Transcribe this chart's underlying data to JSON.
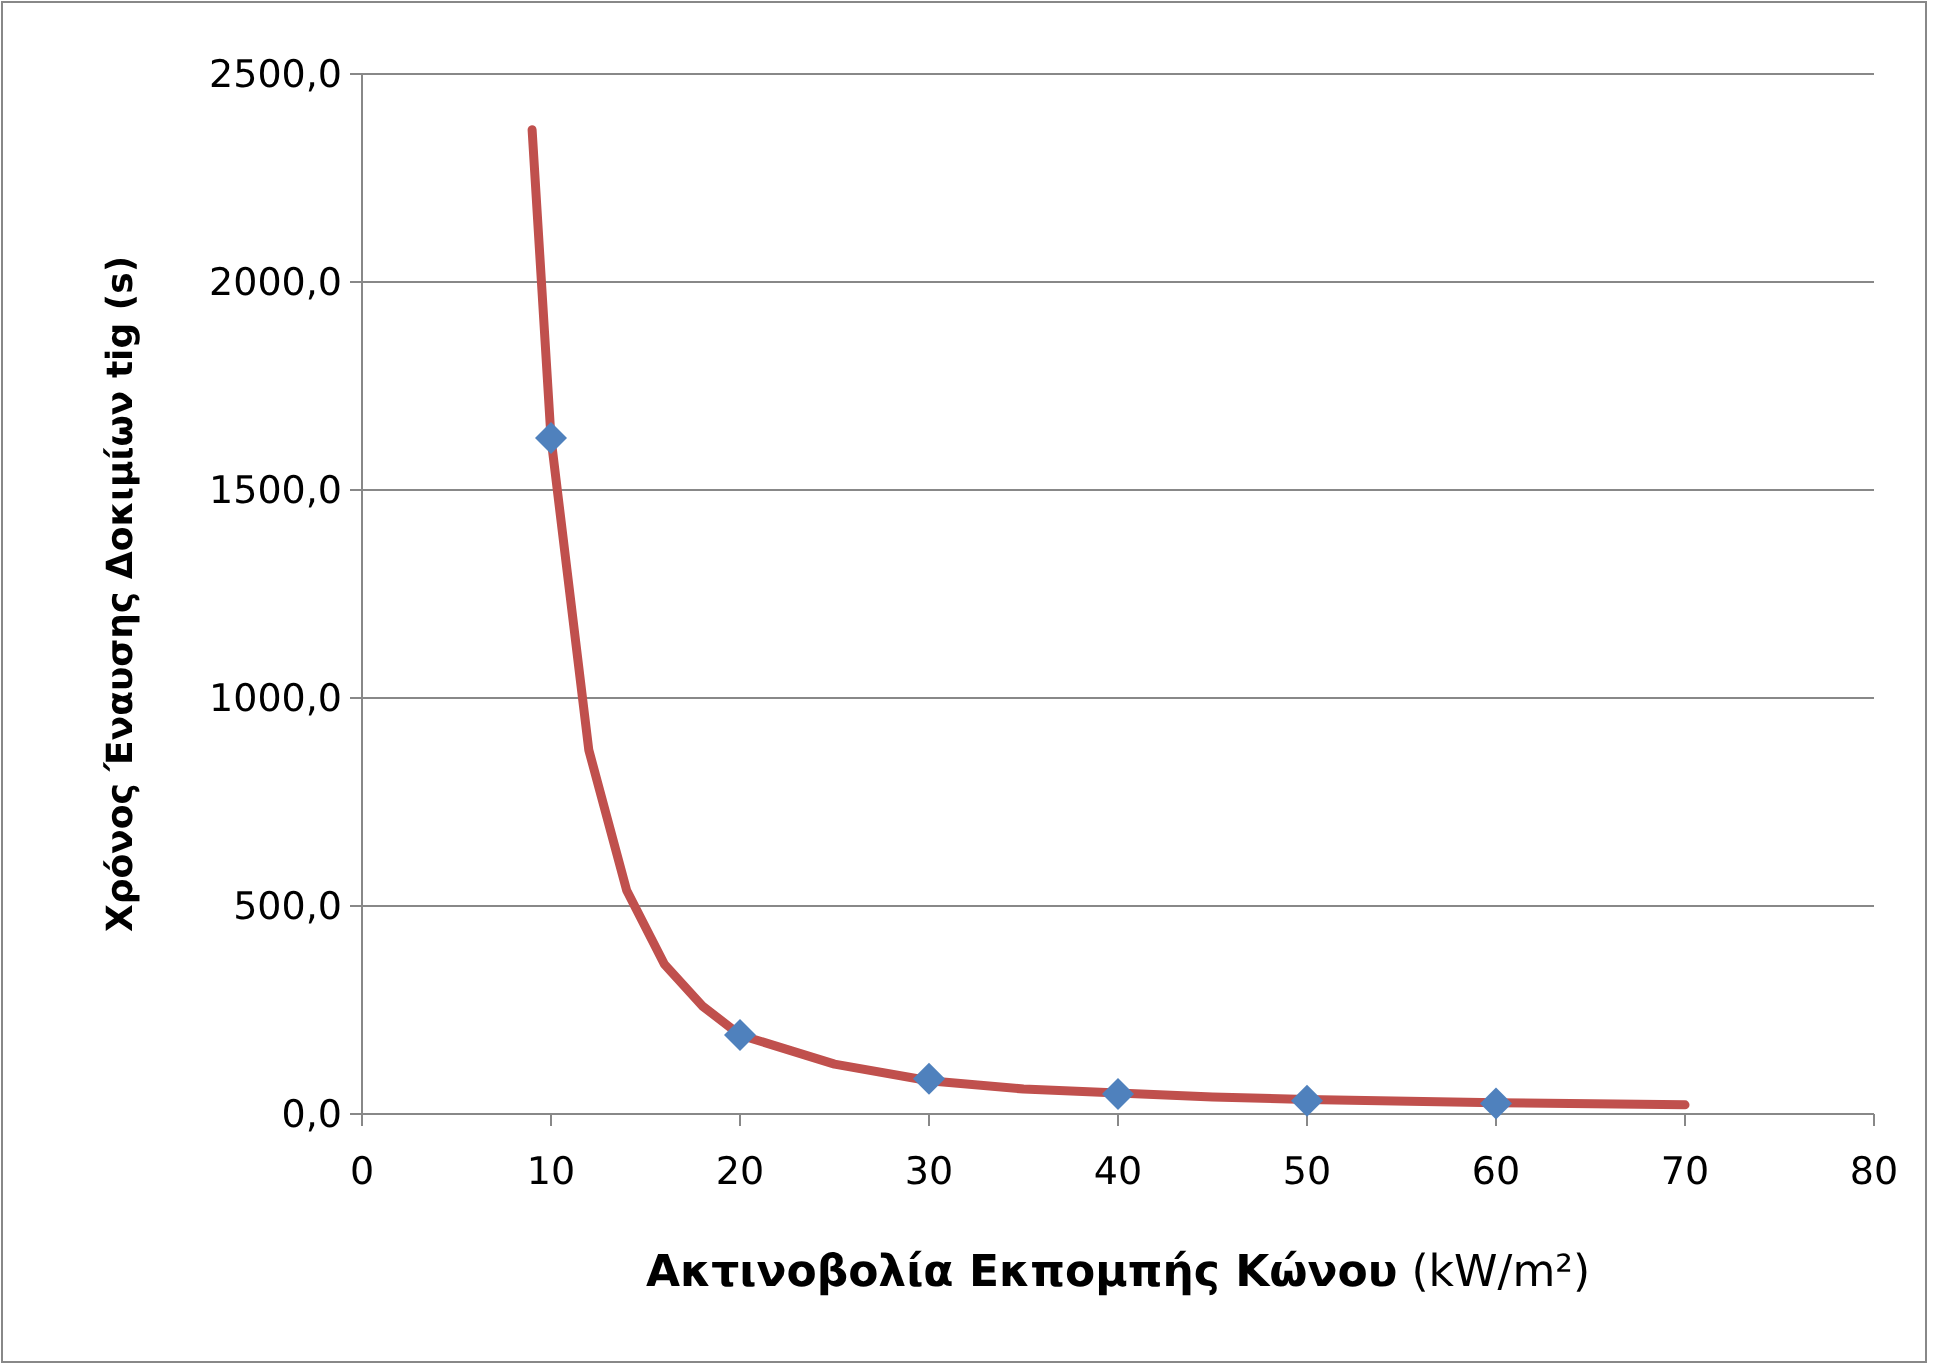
{
  "chart_data": {
    "type": "scatter",
    "xlabel": "Ακτινοβολία Εκπομπής Κώνου (kW/m²)",
    "ylabel": "Χρόνος Έναυσης Δοκιμίων  tig (s)",
    "xlim": [
      0,
      80
    ],
    "xticks": [
      0,
      10,
      20,
      30,
      40,
      50,
      60,
      70,
      80
    ],
    "ylim": [
      0,
      2500
    ],
    "yticks": [
      {
        "value": 0,
        "label": "0,0"
      },
      {
        "value": 500,
        "label": "500,0"
      },
      {
        "value": 1000,
        "label": "1000,0"
      },
      {
        "value": 1500,
        "label": "1500,0"
      },
      {
        "value": 2000,
        "label": "2000,0"
      },
      {
        "value": 2500,
        "label": "2500,0"
      }
    ],
    "grid": "y",
    "series": [
      {
        "type": "line",
        "color": "#c0504d",
        "marker": "none",
        "line_style": "solid",
        "x": [
          9,
          10,
          12,
          14,
          16,
          18,
          20,
          25,
          30,
          35,
          45,
          50,
          60,
          70
        ],
        "values": [
          2366,
          1625,
          875,
          538,
          360,
          260,
          190,
          120,
          80,
          60,
          41,
          35,
          27,
          22
        ]
      },
      {
        "color": "#4f81bd",
        "marker": "diamond",
        "x": [
          10,
          20,
          30,
          40,
          50,
          60
        ],
        "values": [
          1625,
          190,
          85,
          48,
          32,
          25
        ]
      }
    ]
  }
}
